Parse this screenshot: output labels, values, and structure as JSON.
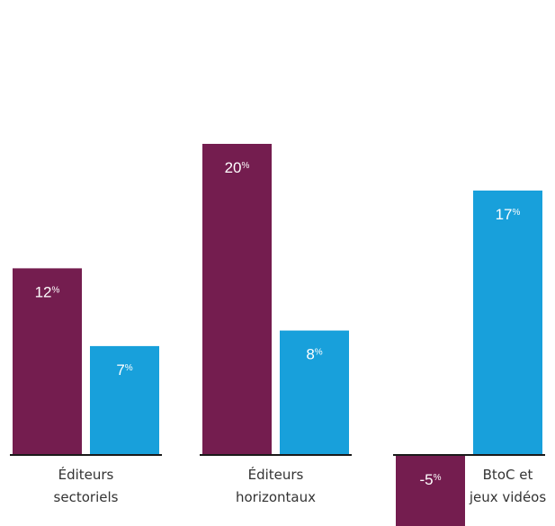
{
  "chart_data": {
    "type": "bar",
    "title": "",
    "xlabel": "",
    "ylabel": "",
    "ylim": [
      -5,
      20
    ],
    "grid": false,
    "legend": "none",
    "categories": [
      [
        "Éditeurs",
        "sectoriels"
      ],
      [
        "Éditeurs",
        "horizontaux"
      ],
      [
        "BtoC et",
        "jeux vidéos"
      ]
    ],
    "series": [
      {
        "color": "#741d4f",
        "values": [
          12,
          20,
          -5
        ],
        "labels": [
          "12",
          "20",
          "-5"
        ]
      },
      {
        "color": "#18a0db",
        "values": [
          7,
          8,
          17
        ],
        "labels": [
          "7",
          "8",
          "17"
        ]
      }
    ],
    "value_suffix": "%"
  }
}
